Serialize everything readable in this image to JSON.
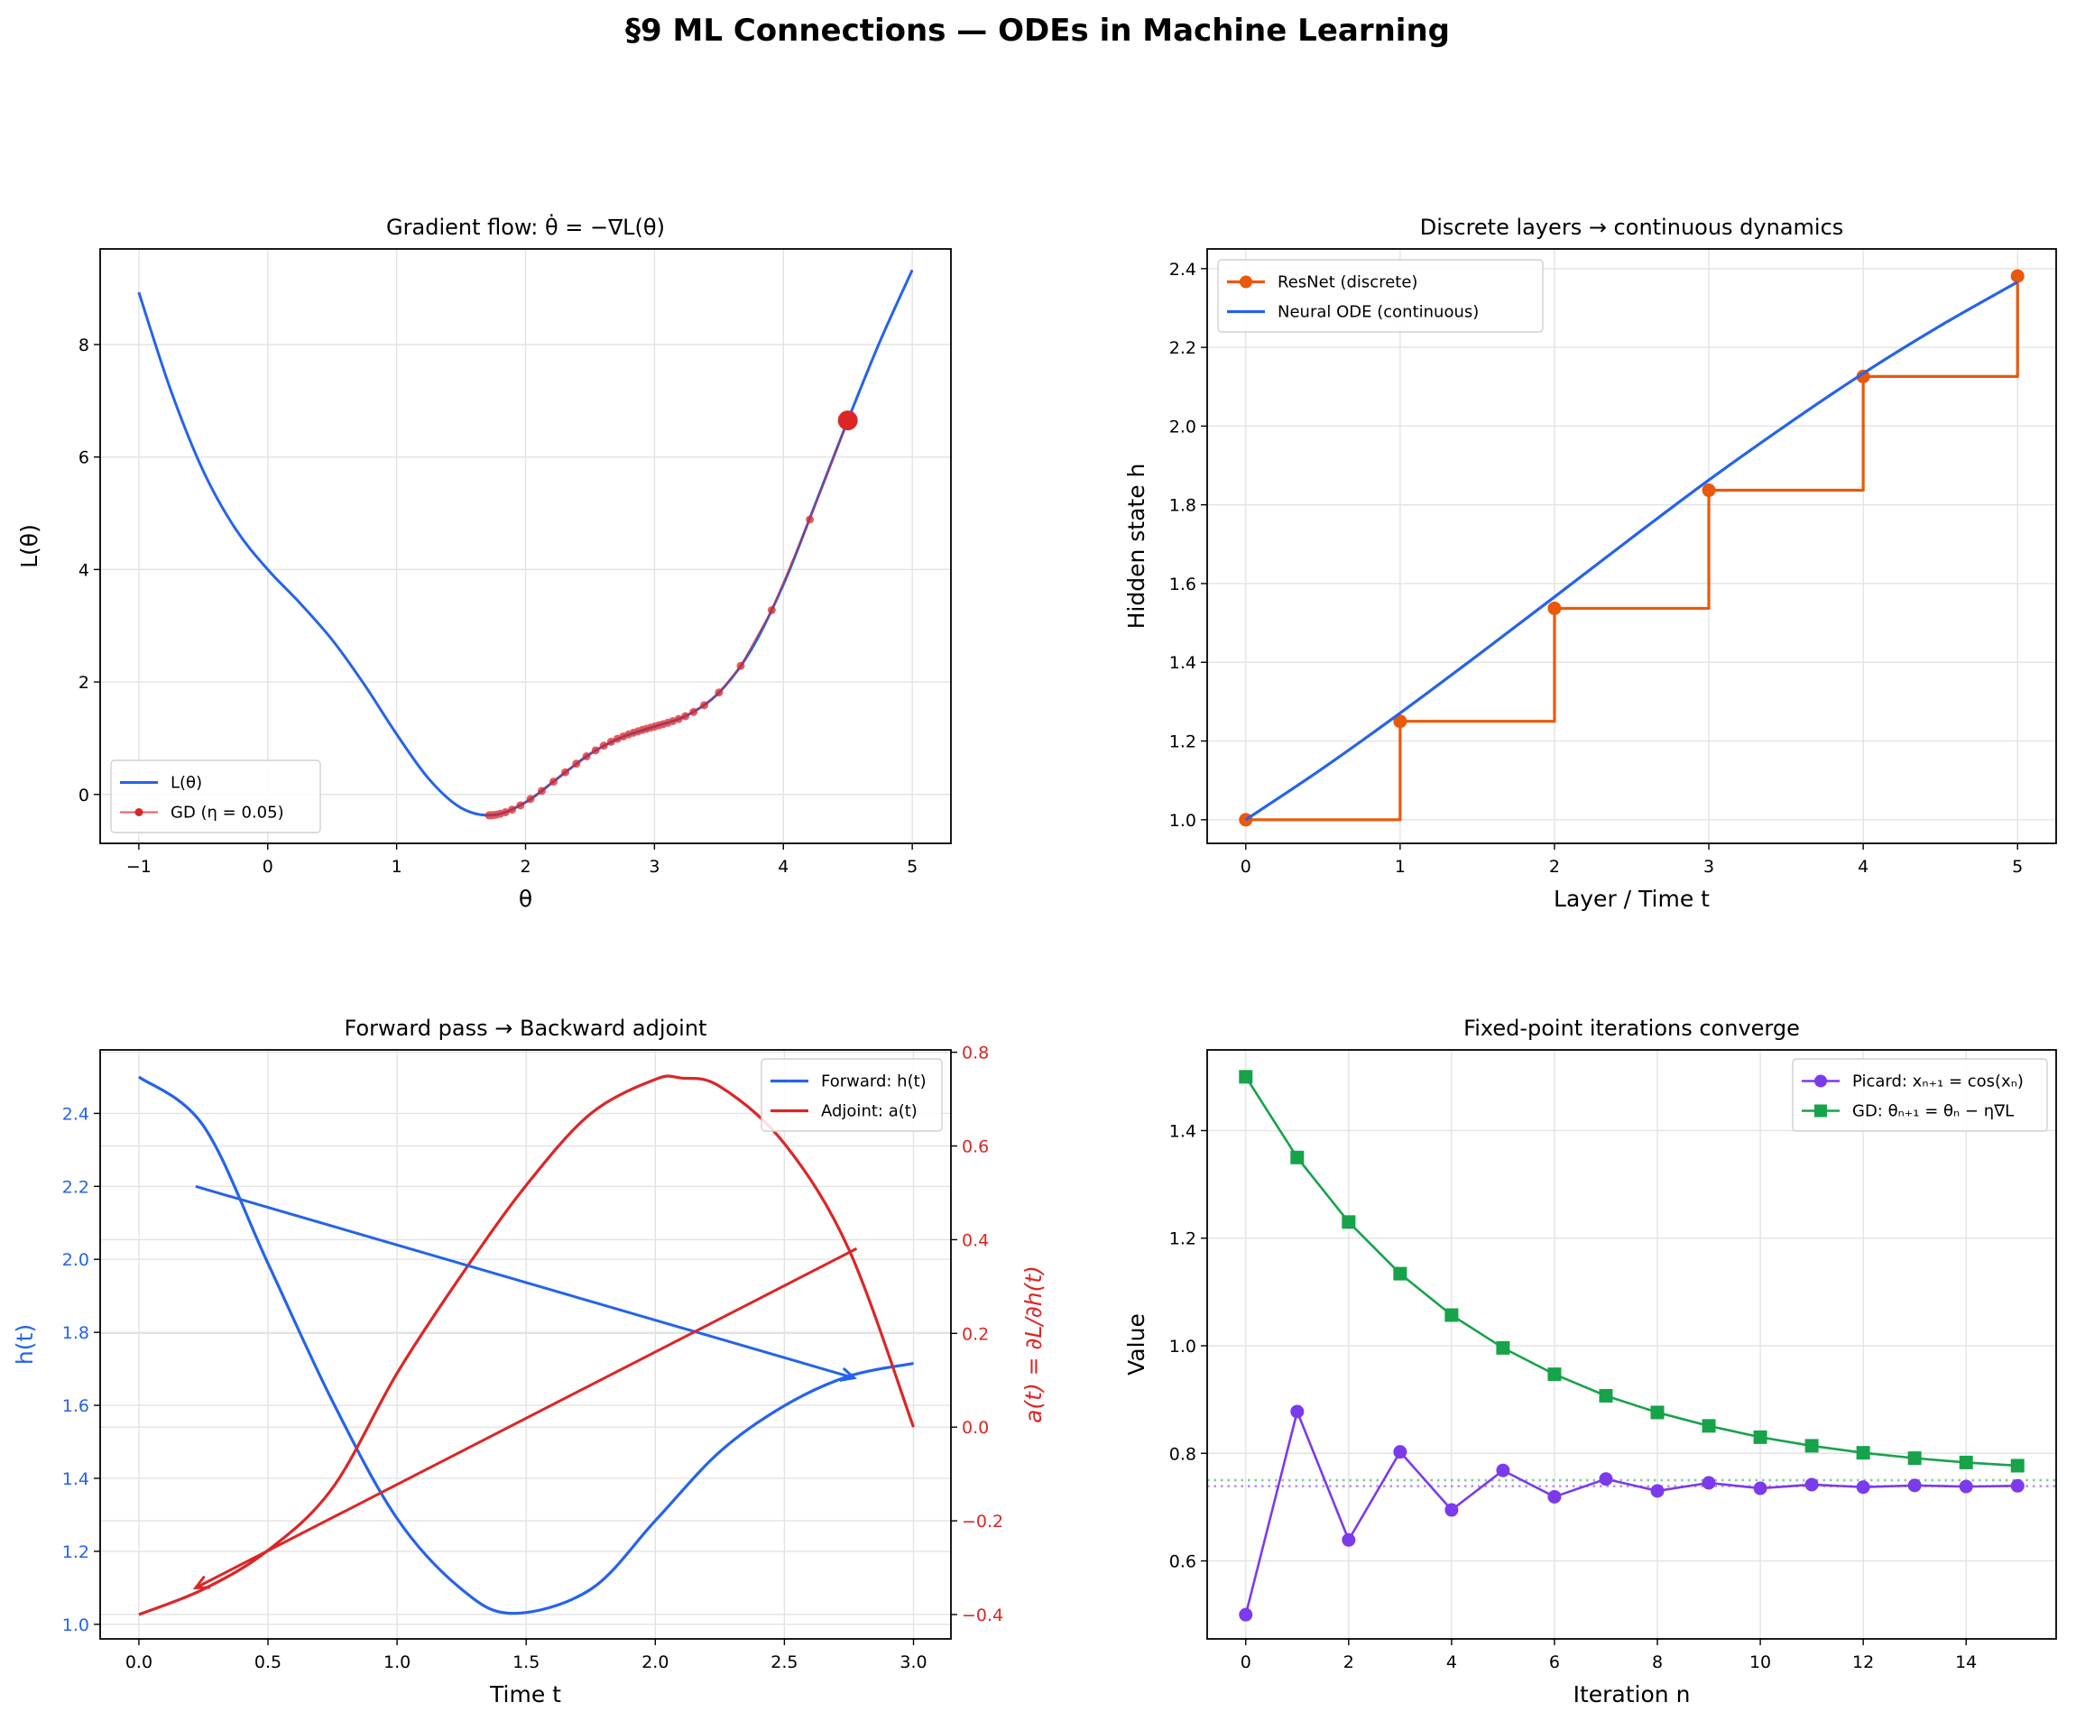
{
  "suptitle": "§9  ML Connections — ODEs in Machine Learning",
  "colors": {
    "blue": "#2563eb",
    "red": "#dc2626",
    "orange": "#ea580c",
    "purple": "#7c3aed",
    "green": "#16a34a"
  },
  "chart_data": [
    {
      "type": "line",
      "title": "Gradient flow: θ̇ = −∇L(θ)",
      "xlabel": "θ",
      "ylabel": "L(θ)",
      "xlim": [
        -1.3,
        5.3
      ],
      "ylim": [
        -0.87,
        9.7
      ],
      "xticks": [
        -1,
        0,
        1,
        2,
        3,
        4,
        5
      ],
      "xticklabels": [
        "−1",
        "0",
        "1",
        "2",
        "3",
        "4",
        "5"
      ],
      "yticks": [
        0,
        2,
        4,
        6,
        8
      ],
      "yticklabels": [
        "0",
        "2",
        "4",
        "6",
        "8"
      ],
      "grid": true,
      "legend": "lower-left",
      "series": [
        {
          "name": "L(θ)",
          "color": "#2563eb",
          "width": 3,
          "smooth": true,
          "x": [
            -1,
            -0.75,
            -0.5,
            -0.25,
            0,
            0.25,
            0.5,
            0.75,
            1,
            1.25,
            1.5,
            1.75,
            2,
            2.25,
            2.5,
            2.75,
            3,
            3.25,
            3.5,
            3.75,
            4,
            4.25,
            4.5,
            4.75,
            5
          ],
          "y": [
            8.929,
            7.173,
            5.751,
            4.722,
            4.0,
            3.403,
            2.749,
            1.952,
            1.071,
            0.276,
            -0.239,
            -0.366,
            -0.14,
            0.288,
            0.719,
            1.021,
            1.206,
            1.403,
            1.81,
            2.571,
            3.732,
            5.177,
            6.651,
            8.059,
            9.325
          ]
        },
        {
          "name": "GD (η = 0.05)",
          "color": "#dc2626",
          "width": 1.6,
          "marker": "circle",
          "opacity": 0.75,
          "x": [
            4.5,
            4.2054,
            3.91,
            3.6688,
            3.5011,
            3.3864,
            3.3035,
            3.2395,
            3.1874,
            3.143,
            3.1037,
            3.0679,
            3.0343,
            3.002,
            2.9704,
            2.9388,
            2.9065,
            2.8729,
            2.8375,
            2.7997,
            2.7586,
            2.7135,
            2.6634,
            2.6072,
            2.544,
            2.4731,
            2.3942,
            2.3081,
            2.2172,
            2.1255,
            2.0383,
            1.9605,
            1.8955,
            1.8439,
            1.8047,
            1.7758,
            1.7549,
            1.74,
            1.7296,
            1.7223,
            1.7172
          ],
          "y": [
            6.651,
            4.889,
            3.277,
            2.285,
            1.813,
            1.587,
            1.466,
            1.391,
            1.341,
            1.304,
            1.275,
            1.25,
            1.229,
            1.207,
            1.187,
            1.167,
            1.147,
            1.123,
            1.097,
            1.067,
            1.031,
            0.989,
            0.936,
            0.868,
            0.784,
            0.677,
            0.547,
            0.394,
            0.227,
            0.062,
            -0.082,
            -0.194,
            -0.27,
            -0.317,
            -0.344,
            -0.358,
            -0.366,
            -0.369,
            -0.371,
            -0.372,
            -0.372
          ]
        }
      ],
      "highlight": {
        "x": 4.5,
        "y": 6.651,
        "color": "#dc2626"
      }
    },
    {
      "type": "line",
      "title": "Discrete layers → continuous dynamics",
      "xlabel": "Layer / Time t",
      "ylabel": "Hidden state h",
      "xlim": [
        -0.25,
        5.25
      ],
      "ylim": [
        0.94,
        2.45
      ],
      "xticks": [
        0,
        1,
        2,
        3,
        4,
        5
      ],
      "xticklabels": [
        "0",
        "1",
        "2",
        "3",
        "4",
        "5"
      ],
      "yticks": [
        1.0,
        1.2,
        1.4,
        1.6,
        1.8,
        2.0,
        2.2,
        2.4
      ],
      "yticklabels": [
        "1.0",
        "1.2",
        "1.4",
        "1.6",
        "1.8",
        "2.0",
        "2.2",
        "2.4"
      ],
      "grid": true,
      "legend": "upper-left",
      "series": [
        {
          "name": "ResNet (discrete)",
          "color": "#ea580c",
          "width": 3.2,
          "step": "post",
          "marker": "circle",
          "x": [
            0,
            1,
            2,
            3,
            4,
            5
          ],
          "y": [
            1.0,
            1.25,
            1.537,
            1.837,
            2.126,
            2.381
          ]
        },
        {
          "name": "Neural ODE (continuous)",
          "color": "#2563eb",
          "width": 3.2,
          "smooth": true,
          "x": [
            0,
            0.5,
            1,
            1.5,
            2,
            2.5,
            3,
            3.5,
            4,
            4.5,
            5
          ],
          "y": [
            1.0,
            1.131,
            1.271,
            1.417,
            1.566,
            1.716,
            1.863,
            2.002,
            2.134,
            2.255,
            2.366
          ]
        }
      ]
    },
    {
      "type": "line",
      "title": "Forward pass → Backward adjoint",
      "xlabel": "Time t",
      "ylabel": "h(t)",
      "ylabel_right": "a(t) = ∂L/∂h(t)",
      "xlim": [
        -0.15,
        3.145
      ],
      "ylim": [
        0.96,
        2.574
      ],
      "ylim_right": [
        -0.452,
        0.805
      ],
      "xticks": [
        0,
        0.5,
        1,
        1.5,
        2,
        2.5,
        3
      ],
      "xticklabels": [
        "0.0",
        "0.5",
        "1.0",
        "1.5",
        "2.0",
        "2.5",
        "3.0"
      ],
      "yticks": [
        1.0,
        1.2,
        1.4,
        1.6,
        1.8,
        2.0,
        2.2,
        2.4
      ],
      "yticklabels": [
        "1.0",
        "1.2",
        "1.4",
        "1.6",
        "1.8",
        "2.0",
        "2.2",
        "2.4"
      ],
      "yticks_right": [
        -0.4,
        -0.2,
        0.0,
        0.2,
        0.4,
        0.6,
        0.8
      ],
      "yticklabels_right": [
        "−0.4",
        "−0.2",
        "0.0",
        "0.2",
        "0.4",
        "0.6",
        "0.8"
      ],
      "grid": true,
      "legend": "upper-right",
      "series": [
        {
          "name": "Forward: h(t)",
          "color": "#2563eb",
          "width": 3.2,
          "smooth": true,
          "axis": "left",
          "x": [
            0,
            0.25,
            0.5,
            0.75,
            1.0,
            1.25,
            1.45,
            1.75,
            2.0,
            2.25,
            2.5,
            2.75,
            3.0
          ],
          "y": [
            2.5,
            2.366,
            1.989,
            1.611,
            1.29,
            1.096,
            1.03,
            1.096,
            1.284,
            1.473,
            1.599,
            1.68,
            1.715
          ]
        },
        {
          "name": "Adjoint: a(t)",
          "color": "#dc2626",
          "width": 3.2,
          "smooth": true,
          "axis": "right",
          "x": [
            0,
            0.25,
            0.5,
            0.75,
            1.0,
            1.25,
            1.5,
            1.75,
            2.0,
            2.1,
            2.25,
            2.5,
            2.75,
            3.0
          ],
          "y": [
            -0.4,
            -0.346,
            -0.263,
            -0.13,
            0.115,
            0.325,
            0.516,
            0.669,
            0.742,
            0.745,
            0.727,
            0.605,
            0.379,
            0.0
          ]
        }
      ],
      "annotations": [
        {
          "type": "arrow",
          "axis": "left",
          "color": "#2563eb",
          "from": [
            0.22,
            2.2
          ],
          "to": [
            2.77,
            1.675
          ]
        },
        {
          "type": "arrow",
          "axis": "right",
          "color": "#dc2626",
          "from": [
            2.78,
            0.381
          ],
          "to": [
            0.22,
            -0.343
          ]
        }
      ]
    },
    {
      "type": "line",
      "title": "Fixed-point iterations converge",
      "xlabel": "Iteration n",
      "ylabel": "Value",
      "xlim": [
        -0.75,
        15.75
      ],
      "ylim": [
        0.455,
        1.55
      ],
      "xticks": [
        0,
        2,
        4,
        6,
        8,
        10,
        12,
        14
      ],
      "xticklabels": [
        "0",
        "2",
        "4",
        "6",
        "8",
        "10",
        "12",
        "14"
      ],
      "yticks": [
        0.6,
        0.8,
        1.0,
        1.2,
        1.4
      ],
      "yticklabels": [
        "0.6",
        "0.8",
        "1.0",
        "1.2",
        "1.4"
      ],
      "grid": true,
      "legend": "upper-right",
      "series": [
        {
          "name": "Picard: xₙ₊₁ = cos(xₙ)",
          "color": "#7c3aed",
          "width": 2.6,
          "marker": "circle",
          "x": [
            0,
            1,
            2,
            3,
            4,
            5,
            6,
            7,
            8,
            9,
            10,
            11,
            12,
            13,
            14,
            15
          ],
          "y": [
            0.5,
            0.8776,
            0.639,
            0.8027,
            0.6947,
            0.7682,
            0.7192,
            0.7523,
            0.7301,
            0.7451,
            0.735,
            0.7418,
            0.7372,
            0.7403,
            0.7382,
            0.7396
          ]
        },
        {
          "name": "GD: θₙ₊₁ = θₙ − η∇L",
          "color": "#16a34a",
          "width": 2.6,
          "marker": "square",
          "x": [
            0,
            1,
            2,
            3,
            4,
            5,
            6,
            7,
            8,
            9,
            10,
            11,
            12,
            13,
            14,
            15
          ],
          "y": [
            1.5,
            1.35,
            1.23,
            1.134,
            1.057,
            0.996,
            0.947,
            0.907,
            0.876,
            0.851,
            0.83,
            0.814,
            0.801,
            0.791,
            0.783,
            0.777
          ]
        }
      ],
      "hlines": [
        {
          "y": 0.75,
          "color": "#16a34a",
          "style": "dotted"
        },
        {
          "y": 0.739,
          "color": "#7c3aed",
          "style": "dotted"
        }
      ]
    }
  ]
}
